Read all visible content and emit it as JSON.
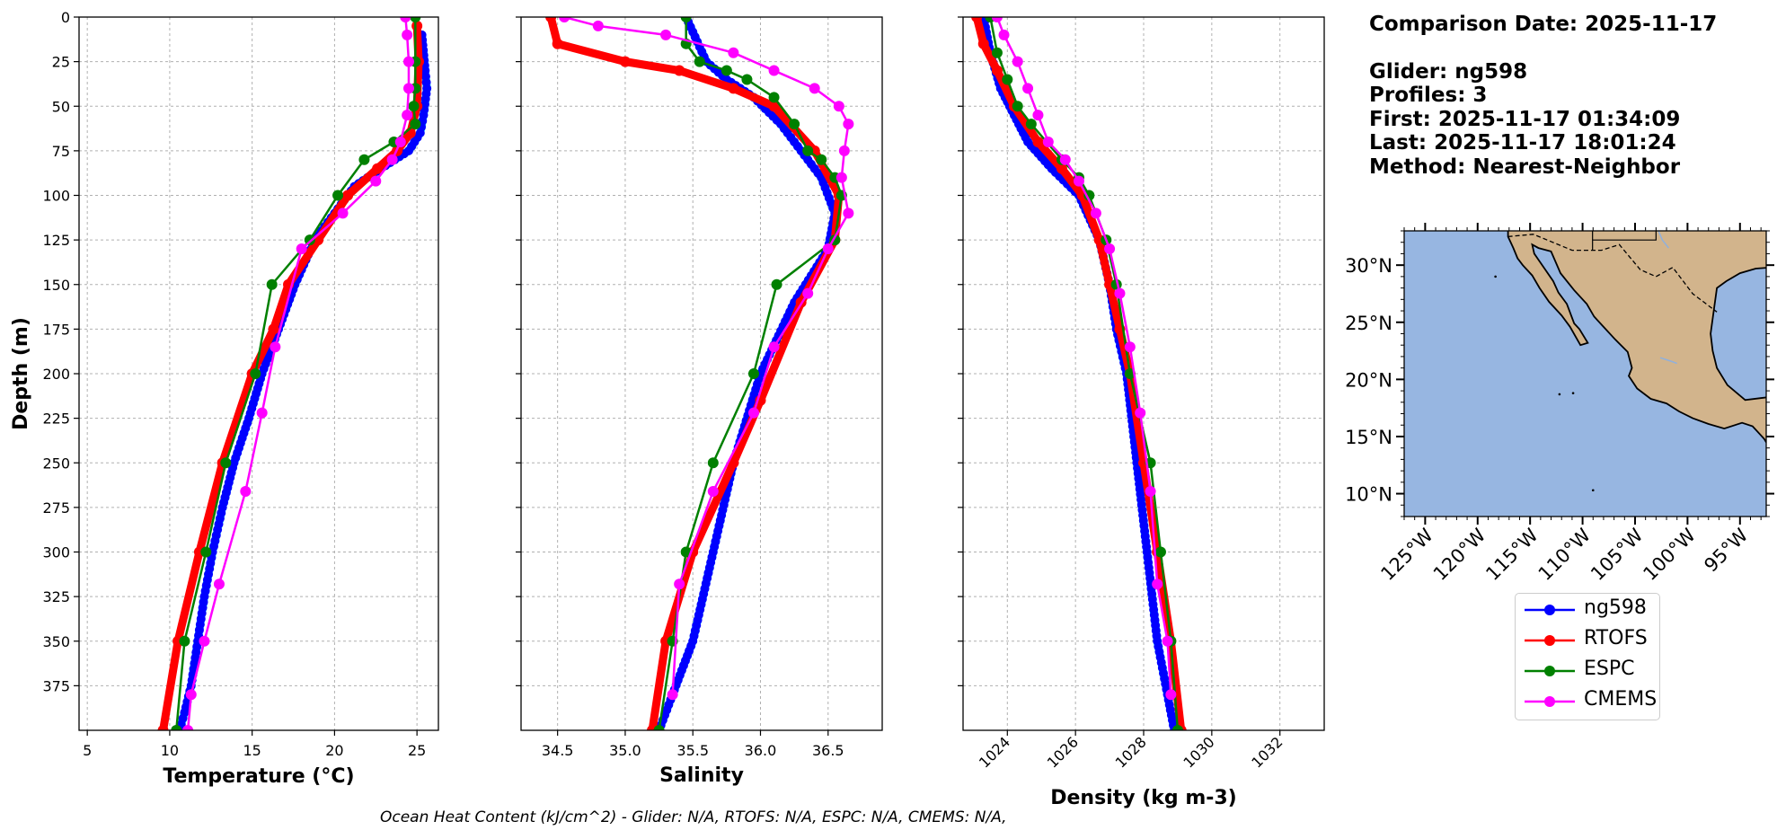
{
  "chart_data": [
    {
      "type": "line",
      "id": "temperature",
      "xlabel": "Temperature (°C)",
      "ylabel": "Depth (m)",
      "xlim": [
        4.5,
        26.3
      ],
      "ylim": [
        400,
        0
      ],
      "xticks": [
        5,
        10,
        15,
        20,
        25
      ],
      "yticks": [
        0,
        25,
        50,
        75,
        100,
        125,
        150,
        175,
        200,
        225,
        250,
        275,
        300,
        325,
        350,
        375
      ],
      "grid": true,
      "series": [
        {
          "name": "ng598",
          "x": [
            25.3,
            25.5,
            25.6,
            25.4,
            25.2,
            24.5,
            22.8,
            21.2,
            20.0,
            18.8,
            17.6,
            16.6,
            15.6,
            14.8,
            13.9,
            13.2,
            12.6,
            12.1,
            11.7,
            11.3,
            10.9,
            10.6
          ],
          "y": [
            10,
            30,
            40,
            55,
            65,
            75,
            85,
            95,
            110,
            125,
            150,
            175,
            200,
            225,
            250,
            275,
            300,
            325,
            350,
            375,
            390,
            400
          ]
        },
        {
          "name": "RTOFS",
          "x": [
            25.0,
            25.1,
            25.0,
            24.6,
            23.8,
            22.6,
            20.8,
            19.0,
            17.2,
            16.3,
            15.0,
            13.2,
            11.8,
            10.5,
            9.6
          ],
          "y": [
            5,
            25,
            50,
            65,
            75,
            85,
            100,
            125,
            150,
            175,
            200,
            250,
            300,
            350,
            400
          ]
        },
        {
          "name": "ESPC",
          "x": [
            24.9,
            24.9,
            24.9,
            24.8,
            24.9,
            23.6,
            21.8,
            20.2,
            18.5,
            16.2,
            15.2,
            13.4,
            12.2,
            10.9,
            10.4
          ],
          "y": [
            0,
            25,
            40,
            50,
            60,
            70,
            80,
            100,
            125,
            150,
            200,
            250,
            300,
            350,
            400
          ]
        },
        {
          "name": "CMEMS",
          "x": [
            24.3,
            24.4,
            24.5,
            24.5,
            24.4,
            24.0,
            23.5,
            22.5,
            20.5,
            18.0,
            16.4,
            15.6,
            14.6,
            13.0,
            12.1,
            11.3,
            11.1
          ],
          "y": [
            0,
            10,
            25,
            40,
            55,
            70,
            80,
            92,
            110,
            130,
            185,
            222,
            266,
            318,
            350,
            380,
            400
          ]
        }
      ]
    },
    {
      "type": "line",
      "id": "salinity",
      "xlabel": "Salinity",
      "xlim": [
        34.23,
        36.9
      ],
      "ylim": [
        400,
        0
      ],
      "xticks": [
        34.5,
        35.0,
        35.5,
        36.0,
        36.5
      ],
      "yticks": [
        0,
        25,
        50,
        75,
        100,
        125,
        150,
        175,
        200,
        225,
        250,
        275,
        300,
        325,
        350,
        375
      ],
      "grid": true,
      "series": [
        {
          "name": "ng598",
          "x": [
            35.45,
            35.6,
            35.75,
            35.95,
            36.15,
            36.3,
            36.45,
            36.55,
            36.5,
            36.25,
            36.0,
            35.8,
            35.65,
            35.5,
            35.35,
            35.25
          ],
          "y": [
            0,
            25,
            35,
            45,
            60,
            75,
            90,
            110,
            130,
            160,
            200,
            250,
            300,
            350,
            380,
            400
          ]
        },
        {
          "name": "RTOFS",
          "x": [
            34.45,
            34.5,
            35.0,
            35.4,
            35.8,
            36.1,
            36.4,
            36.58,
            36.55,
            36.3,
            36.0,
            35.8,
            35.5,
            35.3,
            35.2
          ],
          "y": [
            0,
            15,
            25,
            30,
            40,
            50,
            75,
            100,
            125,
            160,
            215,
            250,
            300,
            350,
            400
          ]
        },
        {
          "name": "ESPC",
          "x": [
            35.45,
            35.45,
            35.55,
            35.75,
            35.9,
            36.1,
            36.25,
            36.35,
            36.45,
            36.55,
            36.6,
            36.55,
            36.12,
            35.95,
            35.65,
            35.45,
            35.35,
            35.25
          ],
          "y": [
            0,
            15,
            25,
            30,
            35,
            45,
            60,
            75,
            80,
            90,
            100,
            125,
            150,
            200,
            250,
            300,
            350,
            400
          ]
        },
        {
          "name": "CMEMS",
          "x": [
            34.55,
            34.8,
            35.3,
            35.8,
            36.1,
            36.4,
            36.58,
            36.65,
            36.62,
            36.6,
            36.65,
            36.5,
            36.35,
            36.1,
            35.95,
            35.65,
            35.4,
            35.35
          ],
          "y": [
            0,
            5,
            10,
            20,
            30,
            40,
            50,
            60,
            75,
            90,
            110,
            130,
            155,
            185,
            222,
            266,
            318,
            380
          ]
        }
      ]
    },
    {
      "type": "line",
      "id": "density",
      "xlabel": "Density (kg m-3)",
      "xlim": [
        1022.7,
        1033.3
      ],
      "ylim": [
        400,
        0
      ],
      "xticks": [
        1024,
        1026,
        1028,
        1030,
        1032
      ],
      "yticks": [
        0,
        25,
        50,
        75,
        100,
        125,
        150,
        175,
        200,
        225,
        250,
        275,
        300,
        325,
        350,
        375
      ],
      "grid": true,
      "series": [
        {
          "name": "ng598",
          "x": [
            1023.3,
            1023.5,
            1023.8,
            1024.2,
            1024.6,
            1025.3,
            1026.1,
            1026.7,
            1027.0,
            1027.2,
            1027.5,
            1027.8,
            1028.1,
            1028.4,
            1028.7,
            1028.9
          ],
          "y": [
            0,
            20,
            40,
            55,
            70,
            85,
            100,
            125,
            150,
            175,
            200,
            250,
            300,
            350,
            380,
            400
          ]
        },
        {
          "name": "RTOFS",
          "x": [
            1023.1,
            1023.3,
            1023.7,
            1024.2,
            1024.9,
            1025.6,
            1026.2,
            1026.7,
            1027.0,
            1027.3,
            1027.6,
            1028.0,
            1028.4,
            1028.8,
            1029.1
          ],
          "y": [
            0,
            15,
            30,
            50,
            70,
            85,
            100,
            125,
            150,
            175,
            200,
            250,
            300,
            350,
            400
          ]
        },
        {
          "name": "ESPC",
          "x": [
            1023.5,
            1023.7,
            1024.0,
            1024.3,
            1024.7,
            1025.6,
            1026.1,
            1026.4,
            1026.9,
            1027.2,
            1027.6,
            1028.2,
            1028.5,
            1028.8,
            1029.0
          ],
          "y": [
            0,
            20,
            35,
            50,
            60,
            80,
            90,
            100,
            125,
            150,
            200,
            250,
            300,
            350,
            400
          ]
        },
        {
          "name": "CMEMS",
          "x": [
            1023.7,
            1023.9,
            1024.3,
            1024.6,
            1024.9,
            1025.2,
            1025.7,
            1026.1,
            1026.6,
            1027.0,
            1027.3,
            1027.6,
            1027.9,
            1028.2,
            1028.4,
            1028.7,
            1028.8
          ],
          "y": [
            0,
            10,
            25,
            40,
            55,
            70,
            80,
            92,
            110,
            130,
            155,
            185,
            222,
            266,
            318,
            350,
            380
          ]
        }
      ]
    },
    {
      "type": "map",
      "id": "location_map",
      "lat_ticks": [
        "30°N",
        "25°N",
        "20°N",
        "15°N",
        "10°N"
      ],
      "lon_ticks": [
        "125°W",
        "120°W",
        "115°W",
        "110°W",
        "105°W",
        "100°W",
        "95°W"
      ],
      "lon_range": [
        -127,
        -92.5
      ],
      "lat_range": [
        8,
        33
      ]
    }
  ],
  "info": {
    "comparison_date": "Comparison Date: 2025-11-17",
    "glider": "Glider: ng598",
    "profiles": "Profiles: 3",
    "first": "First: 2025-11-17 01:34:09",
    "last": "Last: 2025-11-17 18:01:24",
    "method": "Method: Nearest-Neighbor"
  },
  "legend": [
    {
      "label": "ng598",
      "color": "#0000ff"
    },
    {
      "label": "RTOFS",
      "color": "#ff0000"
    },
    {
      "label": "ESPC",
      "color": "#008000"
    },
    {
      "label": "CMEMS",
      "color": "#ff00ff"
    }
  ],
  "colors": {
    "ng598": "#0000ff",
    "cyan": "#00ffff",
    "RTOFS": "#ff0000",
    "ESPC": "#008000",
    "CMEMS": "#ff00ff",
    "ocean": "#97b6e1",
    "land": "#d2b48c"
  },
  "footer": "Ocean Heat Content (kJ/cm^2) - Glider: N/A,  RTOFS: N/A,  ESPC: N/A,  CMEMS: N/A,"
}
